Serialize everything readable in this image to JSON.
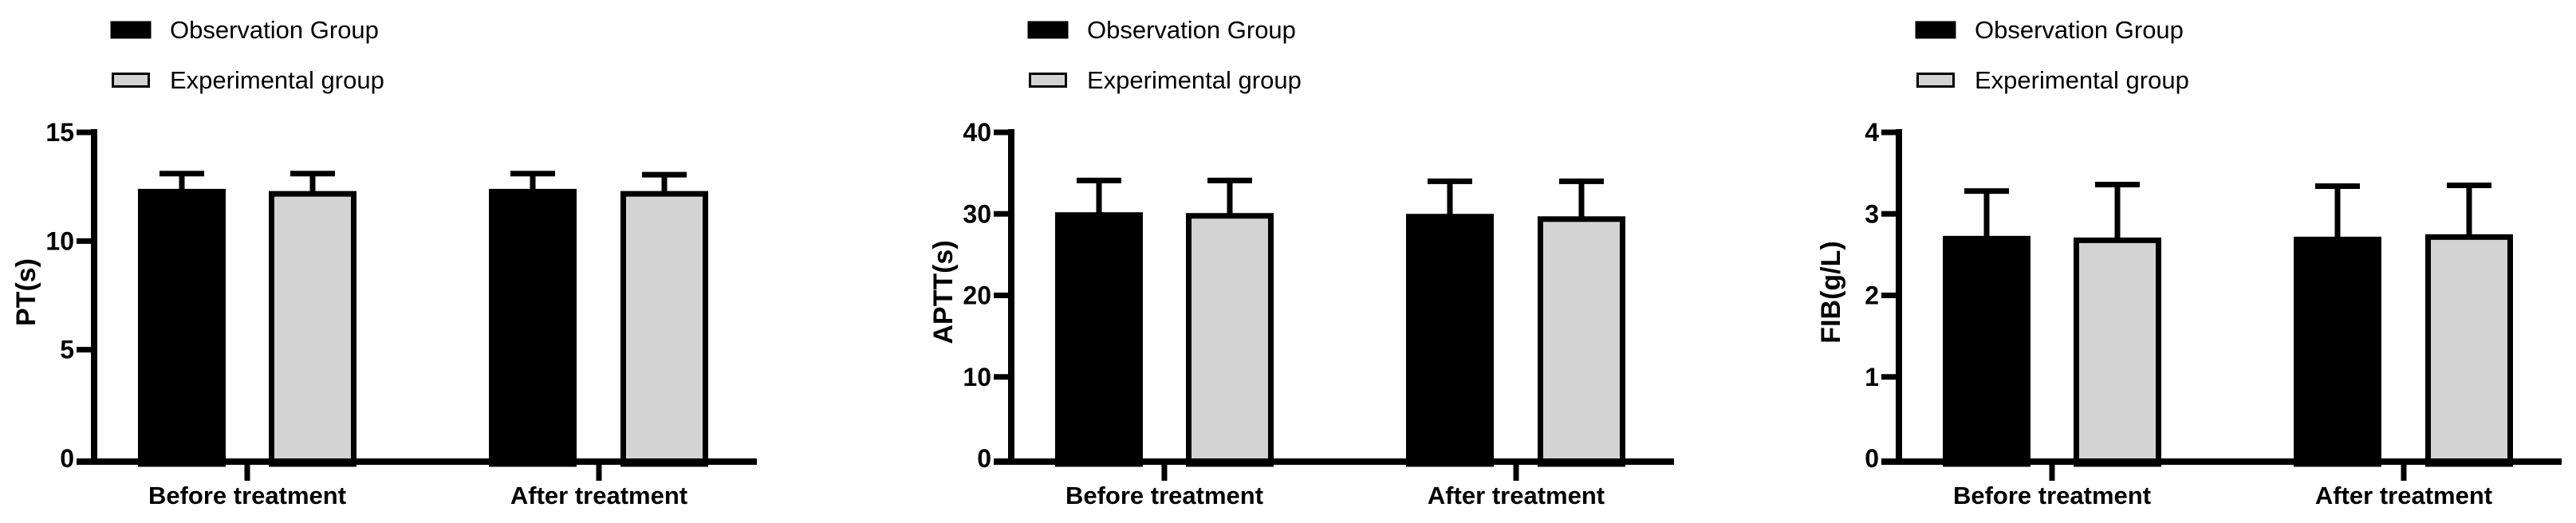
{
  "figure": {
    "background": "#ffffff",
    "axis_color": "#000000",
    "legend": {
      "items": [
        {
          "label": "Observation Group",
          "color": "#000000"
        },
        {
          "label": "Experimental group",
          "color": "#d3d3d3"
        }
      ]
    }
  },
  "chart_data": [
    {
      "type": "bar",
      "title": "",
      "xlabel": "",
      "ylabel": "PT(s)",
      "ylim": [
        0,
        15
      ],
      "yticks": [
        0,
        5,
        10,
        15
      ],
      "grid": false,
      "legend_position": "top-left",
      "error_bars": "upper_sd",
      "categories": [
        "Before treatment",
        "After treatment"
      ],
      "series": [
        {
          "name": "Observation Group",
          "color": "#000000",
          "values": [
            12.4,
            12.4
          ],
          "errors_upper": [
            0.7,
            0.7
          ]
        },
        {
          "name": "Experimental group",
          "color": "#d3d3d3",
          "values": [
            12.3,
            12.3
          ],
          "errors_upper": [
            0.8,
            0.75
          ]
        }
      ]
    },
    {
      "type": "bar",
      "title": "",
      "xlabel": "",
      "ylabel": "APTT(s)",
      "ylim": [
        0,
        40
      ],
      "yticks": [
        0,
        10,
        20,
        30,
        40
      ],
      "grid": false,
      "legend_position": "top-left",
      "error_bars": "upper_sd",
      "categories": [
        "Before treatment",
        "After treatment"
      ],
      "series": [
        {
          "name": "Observation Group",
          "color": "#000000",
          "values": [
            30.2,
            30.0
          ],
          "errors_upper": [
            3.9,
            4.0
          ]
        },
        {
          "name": "Experimental group",
          "color": "#d3d3d3",
          "values": [
            30.1,
            29.7
          ],
          "errors_upper": [
            4.0,
            4.3
          ]
        }
      ]
    },
    {
      "type": "bar",
      "title": "",
      "xlabel": "",
      "ylabel": "FIB(g/L)",
      "ylim": [
        0,
        4
      ],
      "yticks": [
        0,
        1,
        2,
        3,
        4
      ],
      "grid": false,
      "legend_position": "top-left",
      "error_bars": "upper_sd",
      "categories": [
        "Before treatment",
        "After treatment"
      ],
      "series": [
        {
          "name": "Observation Group",
          "color": "#000000",
          "values": [
            2.73,
            2.72
          ],
          "errors_upper": [
            0.55,
            0.62
          ]
        },
        {
          "name": "Experimental group",
          "color": "#d3d3d3",
          "values": [
            2.71,
            2.75
          ],
          "errors_upper": [
            0.65,
            0.6
          ]
        }
      ]
    }
  ]
}
